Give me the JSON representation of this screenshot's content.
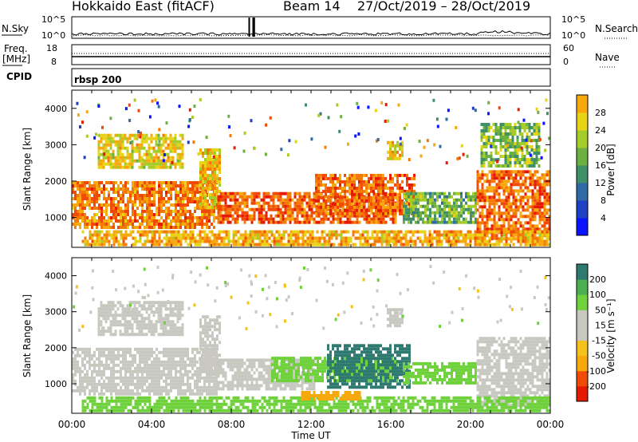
{
  "header": {
    "station": "Hokkaido East (fitACF)",
    "beam": "Beam 14",
    "dates": "27/Oct/2019 – 28/Oct/2019"
  },
  "noise_panel": {
    "left_label": "N.Sky",
    "right_label": "N.Search",
    "left_ticks": [
      "10^5",
      "10^0"
    ],
    "right_ticks": [
      "10^5",
      "10^0"
    ]
  },
  "freq_panel": {
    "left_label_1": "Freq.",
    "left_label_2": "[MHz]",
    "right_label": "Nave",
    "left_ticks": [
      "18",
      "8"
    ],
    "right_ticks": [
      "60",
      "0"
    ]
  },
  "cpid_panel": {
    "left_label": "CPID",
    "program": "rbsp 200"
  },
  "colors": {
    "power_scale": [
      "#0a14ff",
      "#1f3fc4",
      "#2f6aa6",
      "#3f8f68",
      "#6bb040",
      "#a6cc2a",
      "#e8d417",
      "#f6a80c",
      "#f47a07",
      "#f04a04",
      "#e51a02"
    ],
    "velocity_scale": [
      "#e51a02",
      "#f04a04",
      "#f6a80c",
      "#f4c21a",
      "#c8c8c0",
      "#c8c8c0",
      "#6fd23c",
      "#4cb050",
      "#2f7a70",
      "#1f3fc4"
    ]
  },
  "chart_data": [
    {
      "type": "heatmap",
      "name": "power",
      "ylabel": "Slant Range [km]",
      "yticks": [
        1000,
        2000,
        3000,
        4000
      ],
      "ylim": [
        180,
        4500
      ],
      "xlim": [
        0,
        24
      ],
      "colorbar_label": "Power [dB]",
      "colorbar_ticks": [
        4,
        8,
        12,
        16,
        20,
        24,
        28
      ],
      "colorbar_range": [
        0,
        32
      ],
      "patches": [
        {
          "t0": 0.0,
          "t1": 7.3,
          "r0": 700,
          "r1": 2000,
          "v": 25
        },
        {
          "t0": 1.3,
          "t1": 5.6,
          "r0": 2400,
          "r1": 3300,
          "v": 19
        },
        {
          "t0": 6.4,
          "t1": 7.4,
          "r0": 1300,
          "r1": 2900,
          "v": 21
        },
        {
          "t0": 7.3,
          "t1": 16.3,
          "r0": 900,
          "r1": 1700,
          "v": 27
        },
        {
          "t0": 12.2,
          "t1": 17.2,
          "r0": 1100,
          "r1": 2200,
          "v": 26
        },
        {
          "t0": 16.6,
          "t1": 20.3,
          "r0": 900,
          "r1": 1700,
          "v": 13
        },
        {
          "t0": 20.3,
          "t1": 24.0,
          "r0": 400,
          "r1": 2300,
          "v": 26
        },
        {
          "t0": 0.5,
          "t1": 24.0,
          "r0": 250,
          "r1": 650,
          "v": 22
        },
        {
          "t0": 15.8,
          "t1": 16.6,
          "r0": 2600,
          "r1": 3100,
          "v": 20
        },
        {
          "t0": 20.5,
          "t1": 23.5,
          "r0": 2400,
          "r1": 3600,
          "v": 14
        }
      ]
    },
    {
      "type": "heatmap",
      "name": "velocity",
      "xlabel": "Time UT",
      "ylabel": "Slant Range [km]",
      "xticks": [
        "00:00",
        "04:00",
        "08:00",
        "12:00",
        "16:00",
        "20:00",
        "00:00"
      ],
      "yticks": [
        1000,
        2000,
        3000,
        4000
      ],
      "ylim": [
        180,
        4500
      ],
      "xlim": [
        0,
        24
      ],
      "colorbar_label": "Velocity [m s⁻¹]",
      "colorbar_ticks": [
        -200,
        -100,
        -50,
        -15,
        15,
        50,
        100,
        200
      ],
      "patches": [
        {
          "t0": 0.0,
          "t1": 7.3,
          "r0": 700,
          "r1": 2000,
          "v": 0
        },
        {
          "t0": 1.3,
          "t1": 5.6,
          "r0": 2400,
          "r1": 3300,
          "v": 0
        },
        {
          "t0": 6.4,
          "t1": 7.4,
          "r0": 1300,
          "r1": 2900,
          "v": 0
        },
        {
          "t0": 7.3,
          "t1": 12.2,
          "r0": 900,
          "r1": 1700,
          "v": 0
        },
        {
          "t0": 10.0,
          "t1": 16.3,
          "r0": 1050,
          "r1": 1750,
          "v": 40
        },
        {
          "t0": 12.8,
          "t1": 17.0,
          "r0": 900,
          "r1": 2100,
          "v": 120
        },
        {
          "t0": 16.6,
          "t1": 20.3,
          "r0": 1000,
          "r1": 1600,
          "v": 40
        },
        {
          "t0": 20.3,
          "t1": 24.0,
          "r0": 400,
          "r1": 2300,
          "v": 0
        },
        {
          "t0": 0.5,
          "t1": 24.0,
          "r0": 250,
          "r1": 650,
          "v": 25
        },
        {
          "t0": 11.5,
          "t1": 14.5,
          "r0": 600,
          "r1": 800,
          "v": -60
        },
        {
          "t0": 15.8,
          "t1": 16.6,
          "r0": 2600,
          "r1": 3100,
          "v": 0
        }
      ]
    }
  ]
}
